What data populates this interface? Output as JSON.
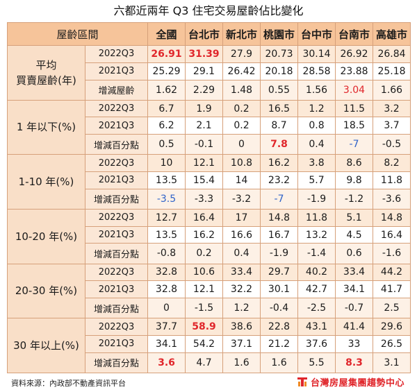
{
  "title": "六都近兩年 Q3 住宅交易屋齡佔比變化",
  "header": [
    "屋齡區間",
    "全國",
    "台北市",
    "新北市",
    "桃園市",
    "台中市",
    "台南市",
    "高雄市"
  ],
  "groups": [
    {
      "label_lines": [
        "平均",
        "買賣屋齡(年)"
      ],
      "rows": [
        {
          "label": "2022Q3",
          "values": [
            "26.91",
            "31.39",
            "27.9",
            "20.73",
            "30.14",
            "26.92",
            "26.84"
          ],
          "styles": [
            "red",
            "red",
            "",
            "",
            "",
            "",
            ""
          ]
        },
        {
          "label": "2021Q3",
          "values": [
            "25.29",
            "29.1",
            "26.42",
            "20.18",
            "28.58",
            "23.88",
            "25.18"
          ],
          "styles": [
            "",
            "",
            "",
            "",
            "",
            "",
            ""
          ]
        },
        {
          "label": "增減屋齡",
          "values": [
            "1.62",
            "2.29",
            "1.48",
            "0.55",
            "1.56",
            "3.04",
            "1.66"
          ],
          "styles": [
            "",
            "",
            "",
            "",
            "",
            "redplain",
            ""
          ]
        }
      ]
    },
    {
      "label_lines": [
        "1 年以下(%)"
      ],
      "rows": [
        {
          "label": "2022Q3",
          "values": [
            "6.7",
            "1.9",
            "0.2",
            "16.5",
            "1.2",
            "11.5",
            "3.2"
          ],
          "styles": [
            "",
            "",
            "",
            "",
            "",
            "",
            ""
          ]
        },
        {
          "label": "2021Q3",
          "values": [
            "6.2",
            "2.1",
            "0.2",
            "8.7",
            "0.8",
            "18.5",
            "3.7"
          ],
          "styles": [
            "",
            "",
            "",
            "",
            "",
            "",
            ""
          ]
        },
        {
          "label": "增減百分點",
          "values": [
            "0.5",
            "-0.1",
            "0",
            "7.8",
            "0.4",
            "-7",
            "-0.5"
          ],
          "styles": [
            "",
            "",
            "",
            "red",
            "",
            "blue",
            ""
          ]
        }
      ]
    },
    {
      "label_lines": [
        "1-10 年(%)"
      ],
      "rows": [
        {
          "label": "2022Q3",
          "values": [
            "10",
            "12.1",
            "10.8",
            "16.2",
            "3.8",
            "8.6",
            "8.2"
          ],
          "styles": [
            "",
            "",
            "",
            "",
            "",
            "",
            ""
          ]
        },
        {
          "label": "2021Q3",
          "values": [
            "13.5",
            "15.4",
            "14",
            "23.2",
            "5.7",
            "9.8",
            "11.8"
          ],
          "styles": [
            "",
            "",
            "",
            "",
            "",
            "",
            ""
          ]
        },
        {
          "label": "增減百分點",
          "values": [
            "-3.5",
            "-3.3",
            "-3.2",
            "-7",
            "-1.9",
            "-1.2",
            "-3.6"
          ],
          "styles": [
            "blue",
            "",
            "",
            "blue",
            "",
            "",
            ""
          ]
        }
      ]
    },
    {
      "label_lines": [
        "10-20 年(%)"
      ],
      "rows": [
        {
          "label": "2022Q3",
          "values": [
            "12.7",
            "16.4",
            "17",
            "14.8",
            "11.8",
            "5.1",
            "14.8"
          ],
          "styles": [
            "",
            "",
            "",
            "",
            "",
            "",
            ""
          ]
        },
        {
          "label": "2021Q3",
          "values": [
            "13.5",
            "16.2",
            "16.6",
            "16.7",
            "13.2",
            "4.5",
            "16.4"
          ],
          "styles": [
            "",
            "",
            "",
            "",
            "",
            "",
            ""
          ]
        },
        {
          "label": "增減百分點",
          "values": [
            "-0.8",
            "0.2",
            "0.4",
            "-1.9",
            "-1.4",
            "0.6",
            "-1.6"
          ],
          "styles": [
            "",
            "",
            "",
            "",
            "",
            "",
            ""
          ]
        }
      ]
    },
    {
      "label_lines": [
        "20-30 年(%)"
      ],
      "rows": [
        {
          "label": "2022Q3",
          "values": [
            "32.8",
            "10.6",
            "33.4",
            "29.7",
            "40.2",
            "33.4",
            "44.2"
          ],
          "styles": [
            "",
            "",
            "",
            "",
            "",
            "",
            ""
          ]
        },
        {
          "label": "2021Q3",
          "values": [
            "32.8",
            "12.1",
            "32.2",
            "30.1",
            "42.7",
            "34.1",
            "41.7"
          ],
          "styles": [
            "",
            "",
            "",
            "",
            "",
            "",
            ""
          ]
        },
        {
          "label": "增減百分點",
          "values": [
            "0",
            "-1.5",
            "1.2",
            "-0.4",
            "-2.5",
            "-0.7",
            "2.5"
          ],
          "styles": [
            "",
            "",
            "",
            "",
            "",
            "",
            ""
          ]
        }
      ]
    },
    {
      "label_lines": [
        "30 年以上(%)"
      ],
      "rows": [
        {
          "label": "2022Q3",
          "values": [
            "37.7",
            "58.9",
            "38.6",
            "22.8",
            "43.1",
            "41.4",
            "29.6"
          ],
          "styles": [
            "",
            "red",
            "",
            "",
            "",
            "",
            ""
          ]
        },
        {
          "label": "2021Q3",
          "values": [
            "34.1",
            "54.2",
            "37.1",
            "21.2",
            "37.6",
            "33",
            "26.5"
          ],
          "styles": [
            "",
            "",
            "",
            "",
            "",
            "",
            ""
          ]
        },
        {
          "label": "增減百分點",
          "values": [
            "3.6",
            "4.7",
            "1.6",
            "1.6",
            "5.5",
            "8.3",
            "3.1"
          ],
          "styles": [
            "red",
            "",
            "",
            "",
            "",
            "red",
            ""
          ]
        }
      ]
    }
  ],
  "footer": {
    "source": "資料來源：內政部不動產資訊平台",
    "brand": "台灣房屋集團趨勢中心",
    "brand_color": "#e0262b"
  }
}
